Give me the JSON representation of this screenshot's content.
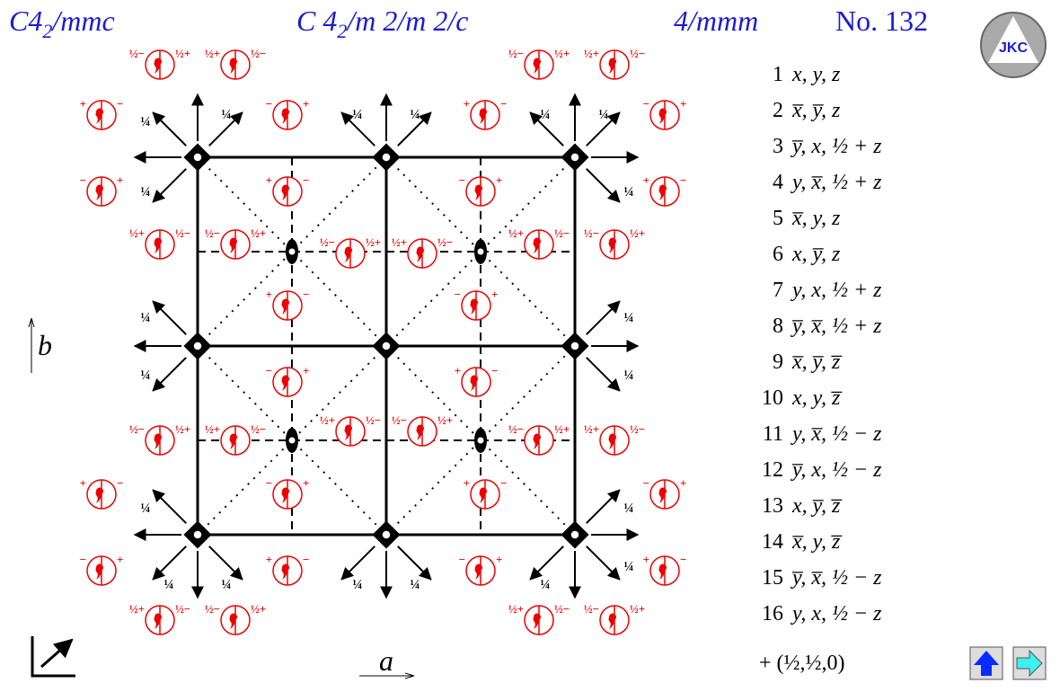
{
  "header": {
    "short_symbol": [
      "C4",
      "2",
      "/mmc"
    ],
    "full_symbol": [
      "C 4",
      "2",
      "/m 2/m 2/c"
    ],
    "point_group": "4/mmm",
    "number": "No. 132"
  },
  "logo": "JKC",
  "axes": {
    "a": "a",
    "b": "b"
  },
  "symbols": [
    [
      "½−",
      "½+"
    ],
    [
      "½+",
      "½−"
    ],
    [
      "½−",
      "½+"
    ],
    [
      "½+",
      "½−"
    ],
    [
      "+",
      "−"
    ],
    [
      "−",
      "+"
    ],
    [
      "+",
      "−"
    ],
    [
      "−",
      "+"
    ],
    [
      "−",
      "+"
    ],
    [
      "+",
      "−"
    ],
    [
      "−",
      "+"
    ],
    [
      "+",
      "−"
    ],
    [
      "½+",
      "½−"
    ],
    [
      "½−",
      "½+"
    ],
    [
      "½−",
      "½+"
    ],
    [
      "½+",
      "½−"
    ],
    [
      "½+",
      "½−"
    ],
    [
      "½−",
      "½+"
    ],
    [
      "+",
      "−"
    ],
    [
      "−",
      "+"
    ],
    [
      "−",
      "+"
    ],
    [
      "+",
      "−"
    ],
    [
      "½−",
      "½+"
    ],
    [
      "½+",
      "½−"
    ],
    [
      "½+",
      "½−"
    ],
    [
      "½−",
      "½+"
    ],
    [
      "½−",
      "½+"
    ],
    [
      "½+",
      "½−"
    ],
    [
      "+",
      "−"
    ],
    [
      "−",
      "+"
    ],
    [
      "+",
      "−"
    ],
    [
      "−",
      "+"
    ],
    [
      "−",
      "+"
    ],
    [
      "+",
      "−"
    ],
    [
      "−",
      "+"
    ],
    [
      "+",
      "−"
    ],
    [
      "½+",
      "½−"
    ],
    [
      "½−",
      "½+"
    ],
    [
      "½+",
      "½−"
    ],
    [
      "½−",
      "½+"
    ]
  ],
  "quarter_labels": [
    "¼",
    "¼",
    "¼",
    "¼",
    "¼",
    "¼",
    "¼",
    "¼",
    "¼",
    "¼",
    "¼",
    "¼",
    "¼",
    "¼",
    "¼",
    "¼",
    "¼",
    "¼",
    "¼",
    "¼"
  ],
  "positions": [
    {
      "n": "1",
      "coords": "x, y, z"
    },
    {
      "n": "2",
      "coords": "x̅, y̅, z"
    },
    {
      "n": "3",
      "coords": "y̅, x, ½ + z"
    },
    {
      "n": "4",
      "coords": "y, x̅, ½ + z"
    },
    {
      "n": "5",
      "coords": "x̅, y, z"
    },
    {
      "n": "6",
      "coords": "x, y̅, z"
    },
    {
      "n": "7",
      "coords": "y, x, ½ + z"
    },
    {
      "n": "8",
      "coords": "y̅, x̅, ½ + z"
    },
    {
      "n": "9",
      "coords": "x̅, y̅, z̅"
    },
    {
      "n": "10",
      "coords": "x, y, z̅"
    },
    {
      "n": "11",
      "coords": "y, x̅, ½ − z"
    },
    {
      "n": "12",
      "coords": "y̅, x, ½ − z"
    },
    {
      "n": "13",
      "coords": "x, y̅, z̅"
    },
    {
      "n": "14",
      "coords": "x̅, y, z̅"
    },
    {
      "n": "15",
      "coords": "y̅, x̅, ½ − z"
    },
    {
      "n": "16",
      "coords": "y, x, ½ − z"
    }
  ],
  "centering": "+ (½,½,0)"
}
